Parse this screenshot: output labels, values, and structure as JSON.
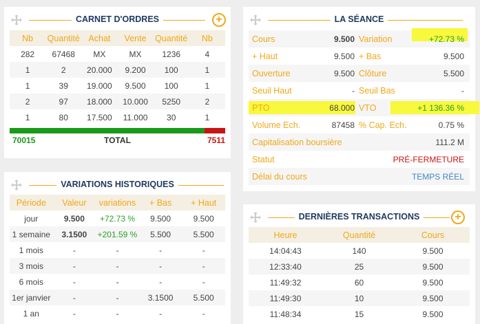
{
  "carnet": {
    "title": "CARNET D'ORDRES",
    "headers": [
      "Nb",
      "Quantité",
      "Achat",
      "Vente",
      "Quantité",
      "Nb"
    ],
    "rows": [
      [
        "282",
        "67468",
        "MX",
        "MX",
        "1236",
        "4"
      ],
      [
        "1",
        "2",
        "20.000",
        "9.200",
        "100",
        "1"
      ],
      [
        "1",
        "39",
        "19.000",
        "9.500",
        "100",
        "1"
      ],
      [
        "2",
        "97",
        "18.000",
        "10.000",
        "5250",
        "2"
      ],
      [
        "1",
        "80",
        "17.500",
        "11.000",
        "30",
        "1"
      ]
    ],
    "total_buy": "70015",
    "total_label": "TOTAL",
    "total_sell": "7511",
    "buy_share": 0.903,
    "buy_color": "#1a9a1a",
    "sell_color": "#c81414"
  },
  "seance": {
    "title": "LA SÉANCE",
    "rows": [
      {
        "l1": "Cours",
        "v1": "9.500",
        "l2": "Variation",
        "v2": "+72.73 %",
        "v1_bold": true,
        "v2_color": "green",
        "hl2": true
      },
      {
        "l1": "+ Haut",
        "v1": "9.500",
        "l2": "+ Bas",
        "v2": "9.500"
      },
      {
        "l1": "Ouverture",
        "v1": "9.500",
        "l2": "Clôture",
        "v2": "5.500"
      },
      {
        "l1": "Seuil Haut",
        "v1": "-",
        "l2": "Seuil Bas",
        "v2": "-"
      },
      {
        "l1": "PTO",
        "v1": "68.000",
        "l2": "VTO",
        "v2": "+1 136.36 %",
        "v2_color": "green",
        "hl1": true,
        "hl2": true
      },
      {
        "l1": "Volume Ech.",
        "v1": "87458",
        "l2": "% Cap. Ech.",
        "v2": "0.75 %"
      }
    ],
    "capitalisation_label": "Capitalisation boursière",
    "capitalisation_value": "111.2 M",
    "statut_label": "Statut",
    "statut_value": "PRÉ-FERMETURE",
    "delai_label": "Délai du cours",
    "delai_value": "TEMPS RÉEL",
    "highlight_color": "#f8f83c"
  },
  "historique": {
    "title": "VARIATIONS HISTORIQUES",
    "headers": [
      "Période",
      "Valeur",
      "variations",
      "+ Bas",
      "+ Haut"
    ],
    "rows": [
      [
        "jour",
        "9.500",
        "+72.73 %",
        "9.500",
        "9.500"
      ],
      [
        "1 semaine",
        "3.1500",
        "+201.59 %",
        "5.500",
        "5.500"
      ],
      [
        "1 mois",
        "-",
        "-",
        "-",
        "-"
      ],
      [
        "3 mois",
        "-",
        "-",
        "-",
        "-"
      ],
      [
        "6 mois",
        "-",
        "-",
        "-",
        "-"
      ],
      [
        "1er janvier",
        "-",
        "-",
        "3.1500",
        "5.500"
      ],
      [
        "1 an",
        "-",
        "-",
        "-",
        "-"
      ]
    ]
  },
  "transactions": {
    "title": "DERNIÈRES TRANSACTIONS",
    "headers": [
      "Heure",
      "Quantité",
      "Cours"
    ],
    "rows": [
      [
        "14:04:43",
        "140",
        "9.500"
      ],
      [
        "12:33:40",
        "25",
        "9.500"
      ],
      [
        "11:49:32",
        "60",
        "9.500"
      ],
      [
        "11:49:30",
        "10",
        "9.500"
      ],
      [
        "11:48:34",
        "15",
        "9.500"
      ]
    ]
  },
  "icons": {
    "move": "move-icon",
    "add": "plus-circle-icon"
  },
  "accent_color": "#f0a81a",
  "title_color": "#1f3a60"
}
